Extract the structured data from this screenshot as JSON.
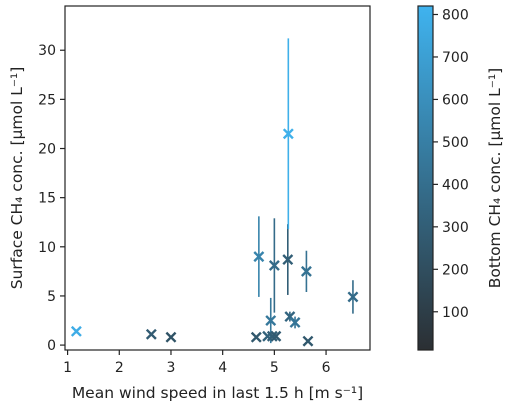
{
  "chart_data": {
    "type": "scatter",
    "xlabel": "Mean wind speed in last 1.5 h [m s⁻¹]",
    "ylabel": "Surface CH₄ conc. [µmol L⁻¹]",
    "xlim": [
      0.95,
      6.85
    ],
    "ylim": [
      -0.5,
      34.5
    ],
    "xticks": [
      1,
      2,
      3,
      4,
      5,
      6
    ],
    "yticks": [
      0,
      5,
      10,
      15,
      20,
      25,
      30
    ],
    "marker": "x",
    "grid": false,
    "colorbar": {
      "label": "Bottom CH₄ conc. [µmol L⁻¹]",
      "range": [
        10,
        820
      ],
      "ticks": [
        100,
        200,
        300,
        400,
        500,
        600,
        700,
        800
      ],
      "color_low": "#2b2f33",
      "color_high": "#3fb3ef"
    },
    "points": [
      {
        "x": 1.17,
        "y": 1.4,
        "err": 0.2,
        "c": 780
      },
      {
        "x": 2.62,
        "y": 1.1,
        "err": 0.1,
        "c": 280
      },
      {
        "x": 3.0,
        "y": 0.8,
        "err": 0.1,
        "c": 230
      },
      {
        "x": 4.65,
        "y": 0.8,
        "err": 0.1,
        "c": 260
      },
      {
        "x": 4.7,
        "y": 9.0,
        "err": 4.1,
        "c": 530
      },
      {
        "x": 4.87,
        "y": 0.9,
        "err": 0.1,
        "c": 320
      },
      {
        "x": 4.93,
        "y": 2.5,
        "err": 2.3,
        "c": 460
      },
      {
        "x": 4.96,
        "y": 0.9,
        "err": 0.1,
        "c": 300
      },
      {
        "x": 5.0,
        "y": 8.1,
        "err": 4.8,
        "c": 380
      },
      {
        "x": 5.03,
        "y": 0.9,
        "err": 0.1,
        "c": 280
      },
      {
        "x": 5.26,
        "y": 8.7,
        "err": 3.6,
        "c": 300
      },
      {
        "x": 5.27,
        "y": 21.5,
        "err": 9.7,
        "c": 800
      },
      {
        "x": 5.3,
        "y": 2.9,
        "err": 0.5,
        "c": 340
      },
      {
        "x": 5.4,
        "y": 2.3,
        "err": 0.6,
        "c": 440
      },
      {
        "x": 5.62,
        "y": 7.5,
        "err": 2.1,
        "c": 420
      },
      {
        "x": 5.65,
        "y": 0.4,
        "err": 0.1,
        "c": 260
      },
      {
        "x": 6.52,
        "y": 4.9,
        "err": 1.7,
        "c": 380
      }
    ]
  }
}
